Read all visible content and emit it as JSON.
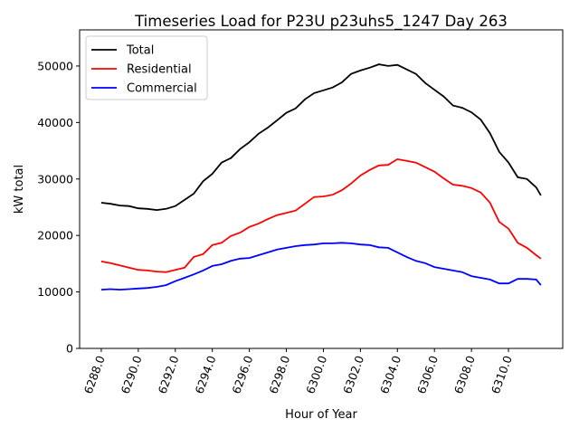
{
  "chart_data": {
    "type": "line",
    "title": "Timeseries Load for P23U p23uhs5_1247  Day 263",
    "xlabel": "Hour of Year",
    "ylabel": "kW total",
    "xlim": [
      6286.83,
      6312.93
    ],
    "ylim": [
      0,
      56400
    ],
    "xticks": [
      6288,
      6290,
      6292,
      6294,
      6296,
      6298,
      6300,
      6302,
      6304,
      6306,
      6308,
      6310
    ],
    "xtick_labels": [
      "6288.0",
      "6290.0",
      "6292.0",
      "6294.0",
      "6296.0",
      "6298.0",
      "6300.0",
      "6302.0",
      "6304.0",
      "6306.0",
      "6308.0",
      "6310.0"
    ],
    "yticks": [
      0,
      10000,
      20000,
      30000,
      40000,
      50000
    ],
    "ytick_labels": [
      "0",
      "10000",
      "20000",
      "30000",
      "40000",
      "50000"
    ],
    "grid": false,
    "legend_position": "top-left",
    "x": [
      6288,
      6288.5,
      6289,
      6289.5,
      6290,
      6290.5,
      6291,
      6291.5,
      6292,
      6292.5,
      6293,
      6293.5,
      6294,
      6294.5,
      6295,
      6295.5,
      6296,
      6296.5,
      6297,
      6297.5,
      6298,
      6298.5,
      6299,
      6299.5,
      6300,
      6300.5,
      6301,
      6301.5,
      6302,
      6302.5,
      6303,
      6303.5,
      6304,
      6304.5,
      6305,
      6305.5,
      6306,
      6306.5,
      6307,
      6307.5,
      6308,
      6308.5,
      6309,
      6309.5,
      6310,
      6310.5,
      6311,
      6311.5,
      6311.75
    ],
    "series": [
      {
        "name": "Total",
        "color": "#000000",
        "values": [
          25800,
          25600,
          25300,
          25200,
          24800,
          24700,
          24500,
          24700,
          25200,
          26300,
          27400,
          29600,
          30900,
          32900,
          33700,
          35300,
          36500,
          38000,
          39100,
          40400,
          41700,
          42500,
          44100,
          45200,
          45700,
          46200,
          47100,
          48600,
          49200,
          49700,
          50300,
          50000,
          50200,
          49400,
          48600,
          47000,
          45800,
          44600,
          43000,
          42600,
          41800,
          40500,
          38100,
          34800,
          32900,
          30300,
          30000,
          28500,
          27100
        ]
      },
      {
        "name": "Residential",
        "color": "#ff0000",
        "values": [
          15400,
          15100,
          14700,
          14300,
          13900,
          13800,
          13600,
          13500,
          13900,
          14300,
          16200,
          16700,
          18300,
          18700,
          19900,
          20500,
          21500,
          22100,
          22900,
          23600,
          24000,
          24400,
          25600,
          26800,
          26900,
          27200,
          28000,
          29200,
          30600,
          31600,
          32400,
          32500,
          33500,
          33200,
          32900,
          32100,
          31300,
          30100,
          29000,
          28800,
          28400,
          27600,
          25800,
          22400,
          21200,
          18700,
          17800,
          16500,
          15900
        ]
      },
      {
        "name": "Commercial",
        "color": "#0000ff",
        "values": [
          10400,
          10500,
          10400,
          10500,
          10600,
          10700,
          10900,
          11200,
          11900,
          12500,
          13100,
          13800,
          14600,
          14900,
          15500,
          15900,
          16000,
          16500,
          17000,
          17500,
          17800,
          18100,
          18300,
          18400,
          18600,
          18600,
          18700,
          18600,
          18400,
          18300,
          17900,
          17800,
          17000,
          16200,
          15500,
          15100,
          14400,
          14100,
          13800,
          13500,
          12800,
          12500,
          12200,
          11500,
          11500,
          12300,
          12300,
          12200,
          11200
        ]
      }
    ]
  }
}
